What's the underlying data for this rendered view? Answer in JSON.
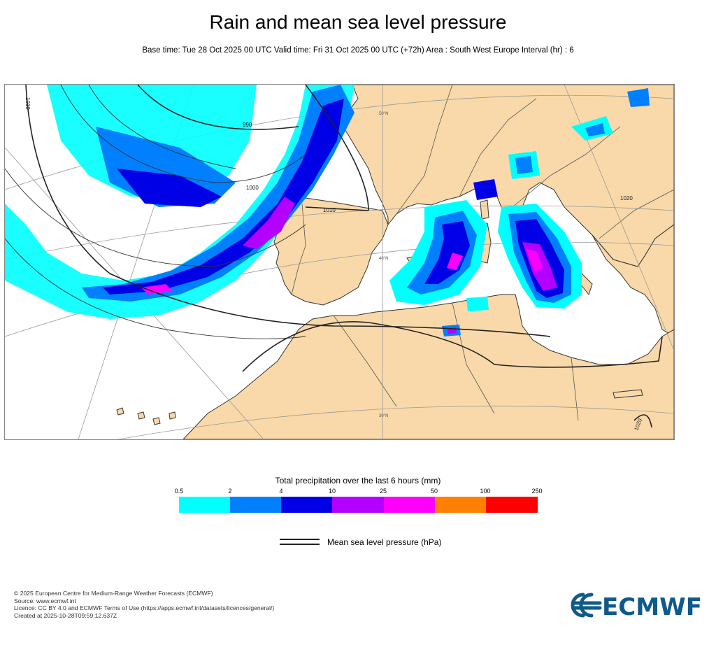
{
  "header": {
    "title": "Rain and mean sea level pressure",
    "subtitle": "Base time: Tue 28 Oct 2025 00 UTC Valid time: Fri 31 Oct 2025 00 UTC (+72h) Area : South West Europe Interval (hr) : 6"
  },
  "map": {
    "isobar_labels": [
      "1010",
      "990",
      "1000",
      "1010",
      "1020",
      "1020"
    ],
    "latitude_labels": [
      "50°N",
      "40°N",
      "30°N"
    ],
    "colors": {
      "land": "#f9d9a9",
      "sea": "#ffffff",
      "coast": "#333333",
      "graticule": "#999999",
      "isobar": "#222222"
    }
  },
  "legend": {
    "title": "Total precipitation over the last 6 hours (mm)",
    "thresholds": [
      "0.5",
      "2",
      "4",
      "10",
      "25",
      "50",
      "100",
      "250"
    ],
    "colors": [
      "#00ffff",
      "#0080ff",
      "#0000e6",
      "#b300ff",
      "#ff00ff",
      "#ff8000",
      "#ff0000"
    ],
    "pressure_label": "Mean sea level pressure (hPa)"
  },
  "footer": {
    "lines": [
      "© 2025 European Centre for Medium-Range Weather Forecasts (ECMWF)",
      "Source: www.ecmwf.int",
      "Licence: CC BY 4.0 and ECMWF Terms of Use (https://apps.ecmwf.int/datasets/licences/general/)",
      "Created at 2025-10-28T09:59:12.637Z"
    ]
  },
  "logo": {
    "text": "ECMWF",
    "color": "#0e5a8a"
  }
}
